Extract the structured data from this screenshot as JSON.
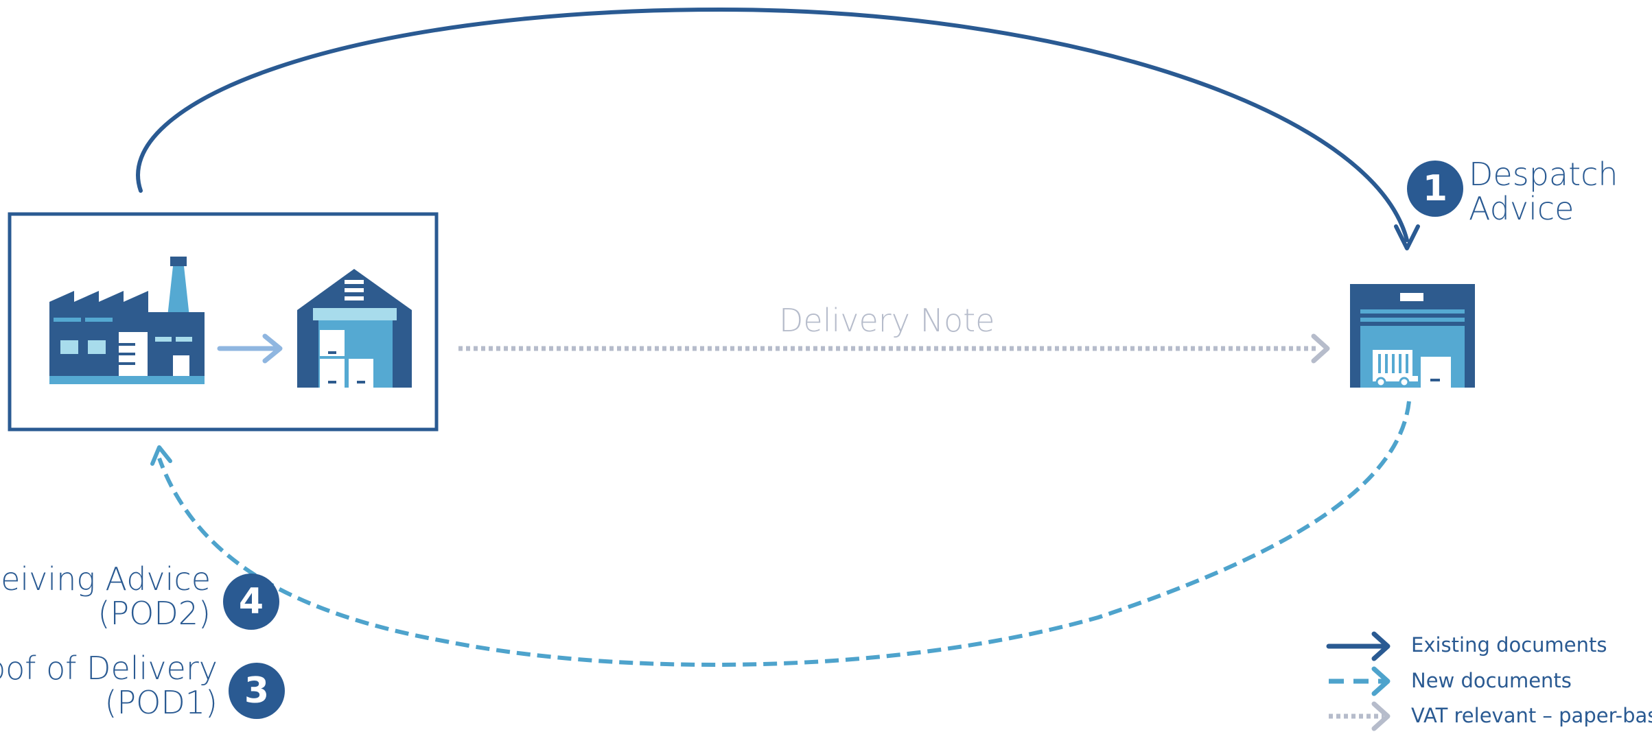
{
  "colors": {
    "existing": "#2a5a92",
    "new": "#4ea3cc",
    "vat": "#b6bccb",
    "icon_dark": "#2e5b8e",
    "icon_light": "#55a9d2",
    "icon_pale": "#a8dcec"
  },
  "icons": {
    "factory": "factory-icon",
    "warehouse": "warehouse-icon",
    "customer": "receiving-warehouse-icon"
  },
  "steps": {
    "despatch": {
      "number": "1",
      "line1": "Despatch",
      "line2": "Advice"
    },
    "receiving": {
      "number": "4",
      "line1": "Receiving Advice",
      "line2": "(POD2)"
    },
    "proof": {
      "number": "3",
      "line1": "Proof of Delivery",
      "line2": "(POD1)"
    }
  },
  "delivery_note": "Delivery Note",
  "legend": {
    "existing": "Existing documents",
    "new": "New documents",
    "vat": "VAT relevant – paper-based"
  }
}
